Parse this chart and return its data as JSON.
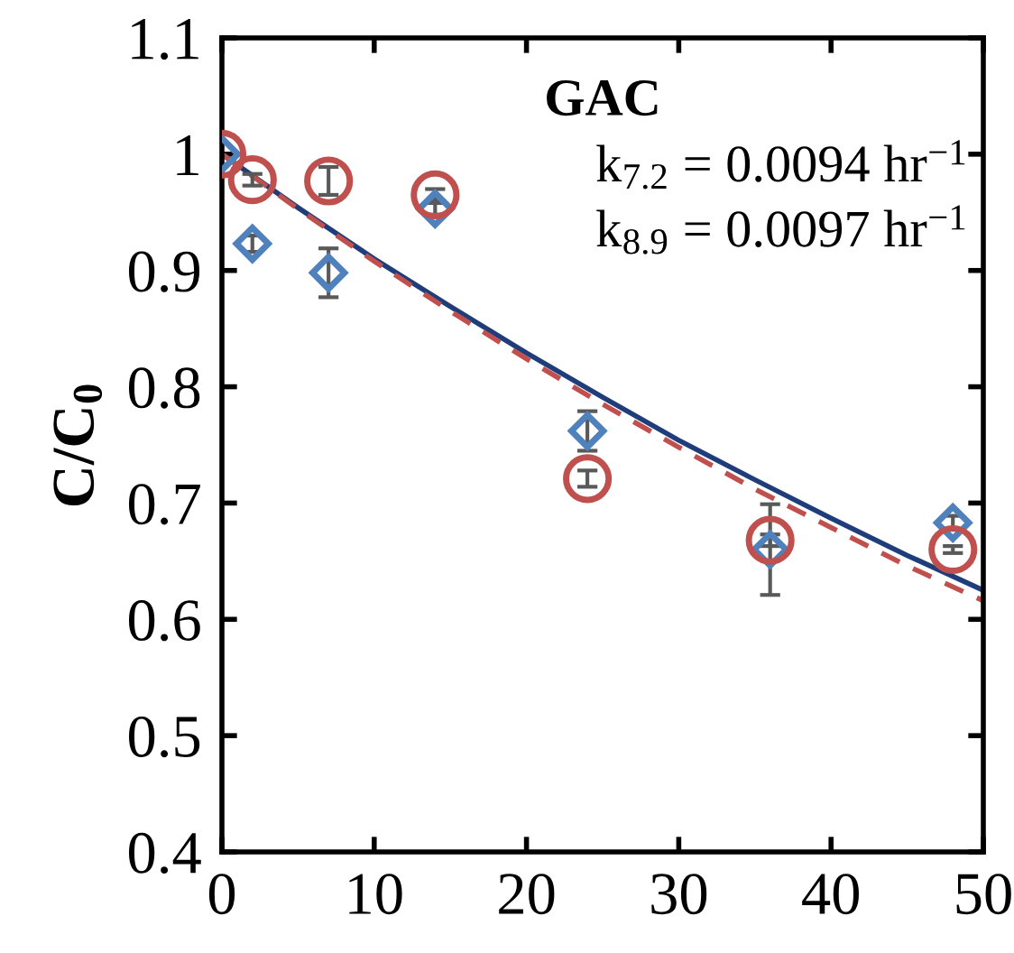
{
  "chart_data": {
    "type": "scatter",
    "title": "GAC",
    "ylabel": "C/C$_{0}$",
    "annotations": [
      "k$_{7.2}$ = 0.0094 hr$^{−1}$",
      "k$_{8.9}$ = 0.0097 hr$^{−1}$"
    ],
    "xlim": [
      0,
      50
    ],
    "xticks": [
      0,
      10,
      20,
      30,
      40,
      50
    ],
    "ylim": [
      0.4,
      1.1
    ],
    "yticks": [
      0.4,
      0.5,
      0.6,
      0.7,
      0.8,
      0.9,
      1,
      1.1
    ],
    "grid": false,
    "legend": false,
    "series": [
      {
        "marker": "diamond",
        "color": "#4f81bd",
        "x": [
          0,
          2,
          7,
          14,
          24,
          36,
          48
        ],
        "values": [
          1.0,
          0.923,
          0.898,
          0.953,
          0.762,
          0.66,
          0.683
        ],
        "errors": [
          null,
          0.007,
          0.021,
          0.005,
          0.017,
          0.039,
          0.006
        ]
      },
      {
        "marker": "circle",
        "color": "#c0504d",
        "x": [
          0,
          2,
          7,
          14,
          24,
          36,
          48
        ],
        "values": [
          1.0,
          0.978,
          0.977,
          0.965,
          0.721,
          0.668,
          0.66
        ],
        "errors": [
          null,
          0.005,
          0.012,
          0.005,
          0.007,
          0.005,
          0.003
        ]
      },
      {
        "type": "line",
        "line_style": "solid",
        "marker": "none",
        "color": "#1f3d7a",
        "x": [
          0,
          5,
          10,
          15,
          20,
          25,
          30,
          35,
          40,
          45,
          50
        ],
        "values": [
          1.0,
          0.954,
          0.91,
          0.869,
          0.829,
          0.791,
          0.754,
          0.72,
          0.687,
          0.655,
          0.625
        ]
      },
      {
        "type": "line",
        "line_style": "dashed",
        "marker": "none",
        "color": "#c0504d",
        "x": [
          0,
          5,
          10,
          15,
          20,
          25,
          30,
          35,
          40,
          45,
          50
        ],
        "values": [
          1.0,
          0.953,
          0.908,
          0.865,
          0.824,
          0.785,
          0.748,
          0.712,
          0.679,
          0.646,
          0.616
        ]
      }
    ]
  }
}
